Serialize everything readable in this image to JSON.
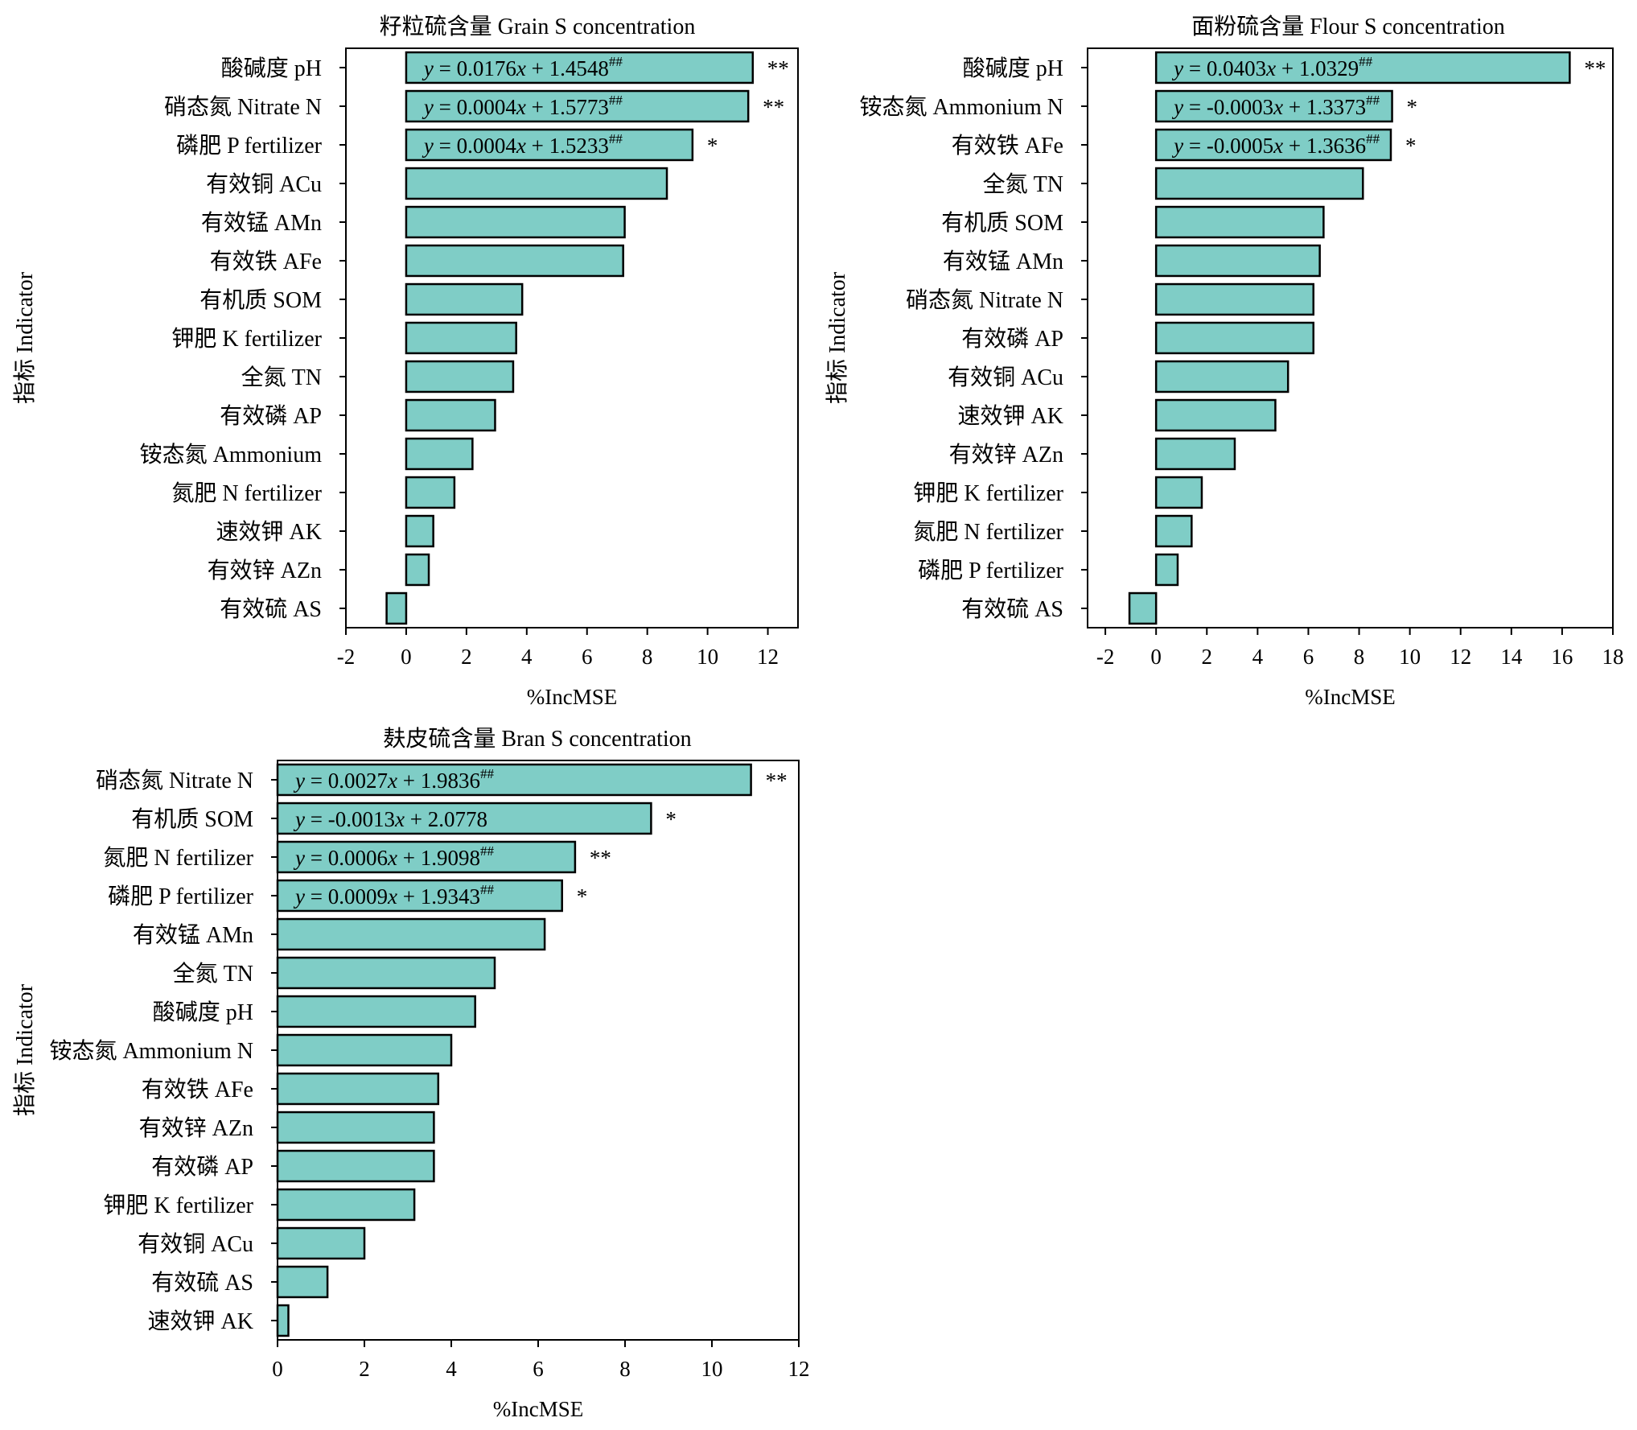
{
  "chart_data": [
    {
      "type": "bar",
      "orientation": "horizontal",
      "title": "籽粒硫含量 Grain S concentration",
      "xlabel": "%IncMSE",
      "ylabel": "指标 Indicator",
      "xlim": [
        -2,
        13
      ],
      "xticks": [
        -2,
        0,
        2,
        4,
        6,
        8,
        10,
        12
      ],
      "categories": [
        "酸碱度 pH",
        "硝态氮 Nitrate N",
        "磷肥 P fertilizer",
        "有效铜 ACu",
        "有效锰 AMn",
        "有效铁 AFe",
        "有机质 SOM",
        "钾肥 K fertilizer",
        "全氮 TN",
        "有效磷 AP",
        "铵态氮 Ammonium",
        "氮肥 N fertilizer",
        "速效钾 AK",
        "有效锌 AZn",
        "有效硫 AS"
      ],
      "values": [
        11.5,
        11.35,
        9.5,
        8.65,
        7.25,
        7.2,
        3.85,
        3.65,
        3.55,
        2.95,
        2.2,
        1.6,
        0.9,
        0.75,
        -0.65
      ],
      "annotations": [
        {
          "category": "酸碱度 pH",
          "coef": "0.0176",
          "intercept": "1.4548",
          "sup": "##",
          "sig": "**"
        },
        {
          "category": "硝态氮 Nitrate N",
          "coef": "0.0004",
          "intercept": "1.5773",
          "sup": "##",
          "sig": "**"
        },
        {
          "category": "磷肥 P fertilizer",
          "coef": "0.0004",
          "intercept": "1.5233",
          "sup": "##",
          "sig": "*"
        }
      ]
    },
    {
      "type": "bar",
      "orientation": "horizontal",
      "title": "面粉硫含量 Flour S concentration",
      "xlabel": "%IncMSE",
      "ylabel": "指标 Indicator",
      "xlim": [
        -2.7,
        18
      ],
      "xticks": [
        -2,
        0,
        2,
        4,
        6,
        8,
        10,
        12,
        14,
        16,
        18
      ],
      "categories": [
        "酸碱度 pH",
        "铵态氮 Ammonium N",
        "有效铁 AFe",
        "全氮 TN",
        "有机质 SOM",
        "有效锰 AMn",
        "硝态氮 Nitrate N",
        "有效磷 AP",
        "有效铜 ACu",
        "速效钾 AK",
        "有效锌 AZn",
        "钾肥 K fertilizer",
        "氮肥 N fertilizer",
        "磷肥 P fertilizer",
        "有效硫 AS"
      ],
      "values": [
        16.3,
        9.3,
        9.25,
        8.15,
        6.6,
        6.45,
        6.2,
        6.2,
        5.2,
        4.7,
        3.1,
        1.8,
        1.4,
        0.85,
        -1.05
      ],
      "annotations": [
        {
          "category": "酸碱度 pH",
          "coef": "0.0403",
          "intercept": "1.0329",
          "sup": "##",
          "sig": "**"
        },
        {
          "category": "铵态氮 Ammonium N",
          "coef": "-0.0003",
          "intercept": "1.3373",
          "sup": "##",
          "sig": "*"
        },
        {
          "category": "有效铁 AFe",
          "coef": "-0.0005",
          "intercept": "1.3636",
          "sup": "##",
          "sig": "*"
        }
      ]
    },
    {
      "type": "bar",
      "orientation": "horizontal",
      "title": "麸皮硫含量 Bran S concentration",
      "xlabel": "%IncMSE",
      "ylabel": "指标 Indicator",
      "xlim": [
        0,
        12
      ],
      "xticks": [
        0,
        2,
        4,
        6,
        8,
        10,
        12
      ],
      "categories": [
        "硝态氮 Nitrate N",
        "有机质 SOM",
        "氮肥 N fertilizer",
        "磷肥 P fertilizer",
        "有效锰 AMn",
        "全氮 TN",
        "酸碱度 pH",
        "铵态氮 Ammonium N",
        "有效铁 AFe",
        "有效锌 AZn",
        "有效磷 AP",
        "钾肥 K fertilizer",
        "有效铜 ACu",
        "有效硫 AS",
        "速效钾 AK"
      ],
      "values": [
        10.9,
        8.6,
        6.85,
        6.55,
        6.15,
        5.0,
        4.55,
        4.0,
        3.7,
        3.6,
        3.6,
        3.15,
        2.0,
        1.15,
        0.25
      ],
      "annotations": [
        {
          "category": "硝态氮 Nitrate N",
          "coef": "0.0027",
          "intercept": "1.9836",
          "sup": "##",
          "sig": "**"
        },
        {
          "category": "有机质 SOM",
          "coef": "-0.0013",
          "intercept": "2.0778",
          "sup": "",
          "sig": "*"
        },
        {
          "category": "氮肥 N fertilizer",
          "coef": "0.0006",
          "intercept": "1.9098",
          "sup": "##",
          "sig": "**"
        },
        {
          "category": "磷肥 P fertilizer",
          "coef": "0.0009",
          "intercept": "1.9343",
          "sup": "##",
          "sig": "*"
        }
      ]
    }
  ],
  "colors": {
    "bar_fill": "#7fcdc6",
    "bar_stroke": "#000000"
  },
  "equation_labels": {
    "y_var": "y",
    "x_var": "x",
    "equals": " = ",
    "plus": " + "
  }
}
